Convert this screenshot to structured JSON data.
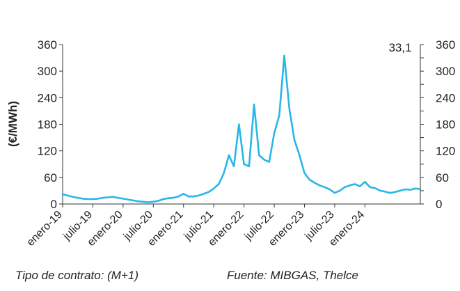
{
  "chart_data": {
    "type": "line",
    "ylabel": "(€/MWh)",
    "ylim": [
      0,
      360
    ],
    "yticks": [
      0,
      60,
      120,
      180,
      240,
      300,
      360
    ],
    "right_axis_ticks": [
      0,
      30,
      60,
      90,
      120,
      150,
      180,
      210,
      240,
      270,
      300,
      330,
      360
    ],
    "xlim": [
      "2019-01",
      "2024-12"
    ],
    "xticks": [
      "enero-19",
      "julio-19",
      "enero-20",
      "julio-20",
      "enero-21",
      "julio-21",
      "enero-22",
      "julio-22",
      "enero-23",
      "julio-23",
      "enero-24"
    ],
    "latest_value_label": "33,1",
    "line_color": "#29b6e6",
    "series": [
      {
        "x": [
          "2019-01",
          "2019-02",
          "2019-03",
          "2019-04",
          "2019-05",
          "2019-06",
          "2019-07",
          "2019-08",
          "2019-09",
          "2019-10",
          "2019-11",
          "2019-12",
          "2020-01",
          "2020-02",
          "2020-03",
          "2020-04",
          "2020-05",
          "2020-06",
          "2020-07",
          "2020-08",
          "2020-09",
          "2020-10",
          "2020-11",
          "2020-12",
          "2021-01",
          "2021-02",
          "2021-03",
          "2021-04",
          "2021-05",
          "2021-06",
          "2021-07",
          "2021-08",
          "2021-09",
          "2021-10",
          "2021-11",
          "2021-12",
          "2022-01",
          "2022-02",
          "2022-03",
          "2022-04",
          "2022-05",
          "2022-06",
          "2022-07",
          "2022-08",
          "2022-09",
          "2022-10",
          "2022-11",
          "2022-12",
          "2023-01",
          "2023-02",
          "2023-03",
          "2023-04",
          "2023-05",
          "2023-06",
          "2023-07",
          "2023-08",
          "2023-09",
          "2023-10",
          "2023-11",
          "2023-12",
          "2024-01",
          "2024-02",
          "2024-03",
          "2024-04",
          "2024-05",
          "2024-06",
          "2024-07",
          "2024-08",
          "2024-09",
          "2024-10",
          "2024-11",
          "2024-12"
        ],
        "y": [
          22,
          19,
          16,
          14,
          12,
          11,
          11,
          12,
          14,
          15,
          16,
          14,
          12,
          10,
          8,
          6,
          5,
          4,
          5,
          7,
          11,
          13,
          14,
          17,
          23,
          17,
          17,
          19,
          23,
          27,
          35,
          45,
          70,
          110,
          85,
          180,
          90,
          85,
          225,
          110,
          100,
          95,
          160,
          200,
          335,
          215,
          145,
          110,
          70,
          55,
          48,
          42,
          38,
          33,
          25,
          30,
          38,
          42,
          45,
          40,
          50,
          38,
          36,
          30,
          28,
          25,
          27,
          30,
          33,
          32,
          35,
          33.1
        ]
      }
    ]
  },
  "footer": {
    "left": "Tipo de contrato: (M+1)",
    "right": "Fuente: MIBGAS, Thelce"
  }
}
